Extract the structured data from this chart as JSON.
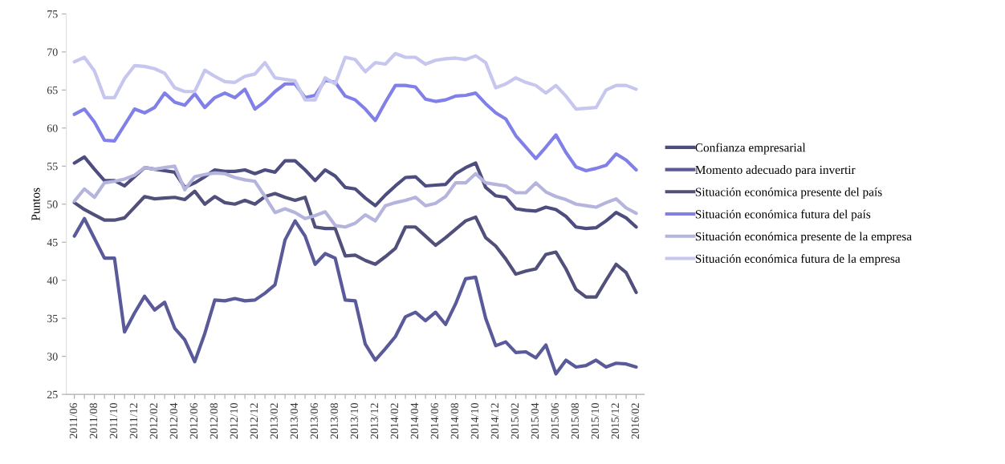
{
  "chart_data": {
    "type": "line",
    "ylabel": "Puntos",
    "ylim": [
      25,
      75
    ],
    "yticks": [
      25,
      30,
      35,
      40,
      45,
      50,
      55,
      60,
      65,
      70,
      75
    ],
    "grid": false,
    "legend": "right",
    "marker": "none",
    "line_style": "solid",
    "categories": [
      "2011/06",
      null,
      "2011/08",
      null,
      "2011/10",
      null,
      "2011/12",
      null,
      "2012/02",
      null,
      "2012/04",
      null,
      "2012/06",
      null,
      "2012/08",
      null,
      "2012/10",
      null,
      "2012/12",
      null,
      "2013/02",
      null,
      "2013/04",
      null,
      "2013/06",
      null,
      "2013/08",
      null,
      "2013/10",
      null,
      "2013/12",
      null,
      "2014/02",
      null,
      "2014/04",
      null,
      "2014/06",
      null,
      "2014/08",
      null,
      "2014/10",
      null,
      "2014/12",
      null,
      "2015/02",
      null,
      "2015/04",
      null,
      "2015/06",
      null,
      "2015/08",
      null,
      "2015/10",
      null,
      "2015/12",
      null,
      "2016/02"
    ],
    "series": [
      {
        "name": "Confianza empresarial",
        "color": "#4d4d80",
        "values": [
          55.4,
          56.2,
          54.6,
          53.1,
          53.1,
          52.4,
          53.6,
          54.8,
          54.6,
          54.4,
          54.2,
          52.2,
          52.8,
          53.6,
          54.5,
          54.3,
          54.3,
          54.5,
          54.0,
          54.5,
          54.2,
          55.7,
          55.7,
          54.5,
          53.1,
          54.5,
          53.7,
          52.2,
          52.0,
          50.8,
          49.8,
          51.2,
          52.4,
          53.5,
          53.6,
          52.4,
          52.5,
          52.6,
          54.0,
          54.8,
          55.4,
          52.2,
          51.1,
          50.9,
          49.4,
          49.2,
          49.1,
          49.6,
          49.3,
          48.4,
          47.0,
          46.8,
          46.9,
          47.8,
          48.9,
          48.2,
          47.0
        ]
      },
      {
        "name": "Momento adecuado para invertir",
        "color": "#5a5a9a",
        "values": [
          45.8,
          48.1,
          45.5,
          42.9,
          42.9,
          33.2,
          35.7,
          37.9,
          36.1,
          37.1,
          33.7,
          32.2,
          29.3,
          33.0,
          37.4,
          37.3,
          37.6,
          37.3,
          37.4,
          38.3,
          39.4,
          45.3,
          47.8,
          45.8,
          42.1,
          43.5,
          42.9,
          37.4,
          37.3,
          31.6,
          29.5,
          31.0,
          32.6,
          35.2,
          35.8,
          34.7,
          35.8,
          34.2,
          36.9,
          40.2,
          40.4,
          35.0,
          31.4,
          31.9,
          30.5,
          30.6,
          29.8,
          31.5,
          27.7,
          29.5,
          28.6,
          28.8,
          29.5,
          28.6,
          29.1,
          29.0,
          28.6
        ]
      },
      {
        "name": "Situación económica presente del país",
        "color": "#50507a",
        "values": [
          50.2,
          49.3,
          48.6,
          47.9,
          47.9,
          48.2,
          49.6,
          51.0,
          50.7,
          50.8,
          50.9,
          50.6,
          51.7,
          50.0,
          51.0,
          50.2,
          50.0,
          50.5,
          50.0,
          51.0,
          51.4,
          50.9,
          50.5,
          50.9,
          47.0,
          46.8,
          46.8,
          43.2,
          43.3,
          42.6,
          42.1,
          43.1,
          44.2,
          47.0,
          47.0,
          45.8,
          44.6,
          45.6,
          46.7,
          47.8,
          48.3,
          45.6,
          44.5,
          42.8,
          40.8,
          41.2,
          41.5,
          43.4,
          43.7,
          41.5,
          38.8,
          37.8,
          37.8,
          40.0,
          42.1,
          41.0,
          38.4
        ]
      },
      {
        "name": "Situación económica futura del país",
        "color": "#8080e8",
        "values": [
          61.8,
          62.5,
          60.8,
          58.4,
          58.3,
          60.4,
          62.5,
          62.0,
          62.7,
          64.6,
          63.4,
          63.0,
          64.5,
          62.7,
          64.0,
          64.6,
          64.0,
          65.1,
          62.5,
          63.5,
          64.8,
          65.8,
          65.8,
          64.0,
          64.3,
          66.3,
          66.0,
          64.2,
          63.7,
          62.5,
          61.0,
          63.4,
          65.6,
          65.6,
          65.4,
          63.8,
          63.5,
          63.7,
          64.2,
          64.3,
          64.6,
          63.2,
          62.0,
          61.2,
          59.0,
          57.5,
          56.0,
          57.5,
          59.1,
          56.8,
          54.9,
          54.4,
          54.7,
          55.1,
          56.6,
          55.8,
          54.5
        ]
      },
      {
        "name": "Situación económica presente de la empresa",
        "color": "#b4b4dc",
        "values": [
          50.4,
          52.0,
          50.9,
          52.8,
          53.0,
          53.3,
          53.8,
          54.8,
          54.6,
          54.8,
          55.0,
          51.9,
          53.6,
          53.9,
          54.1,
          54.0,
          53.5,
          53.2,
          53.0,
          51.0,
          48.9,
          49.4,
          48.9,
          48.1,
          48.5,
          49.0,
          47.2,
          47.0,
          47.5,
          48.6,
          47.8,
          49.8,
          50.2,
          50.5,
          50.9,
          49.8,
          50.1,
          51.0,
          52.8,
          52.8,
          54.0,
          52.8,
          52.6,
          52.4,
          51.5,
          51.5,
          52.8,
          51.6,
          51.0,
          50.6,
          50.0,
          49.8,
          49.6,
          50.2,
          50.7,
          49.5,
          48.8
        ]
      },
      {
        "name": "Situación económica futura de la empresa",
        "color": "#c6c6ee",
        "values": [
          68.7,
          69.3,
          67.5,
          64.0,
          64.0,
          66.5,
          68.2,
          68.1,
          67.8,
          67.2,
          65.3,
          64.8,
          64.8,
          67.6,
          66.8,
          66.1,
          66.0,
          66.8,
          67.1,
          68.6,
          66.6,
          66.4,
          66.2,
          63.7,
          63.7,
          66.6,
          65.8,
          69.3,
          69.0,
          67.4,
          68.6,
          68.4,
          69.8,
          69.3,
          69.3,
          68.4,
          68.9,
          69.1,
          69.2,
          69.0,
          69.5,
          68.6,
          65.3,
          65.8,
          66.6,
          66.0,
          65.6,
          64.6,
          65.6,
          64.2,
          62.5,
          62.6,
          62.7,
          65.0,
          65.6,
          65.6,
          65.1
        ]
      }
    ]
  }
}
